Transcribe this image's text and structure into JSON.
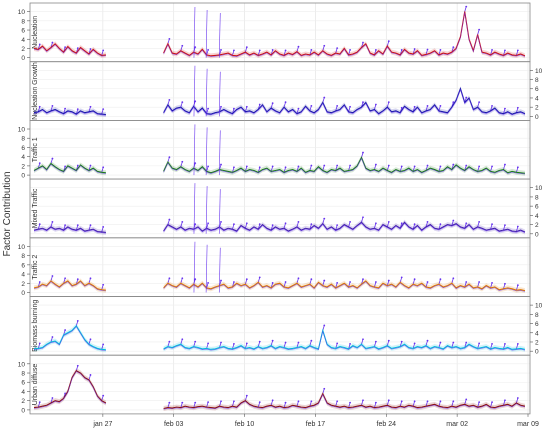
{
  "chart_data": {
    "type": "line",
    "ylabel": "Factor Contribution",
    "xlabel": "",
    "x_ticks": [
      "jan 27",
      "feb 03",
      "feb 10",
      "feb 17",
      "feb 24",
      "mar 02",
      "mar 09"
    ],
    "ylim": [
      0,
      11
    ],
    "y_ticks": [
      0,
      2,
      4,
      6,
      8,
      10
    ],
    "x_range": [
      "jan 20",
      "mar 09"
    ],
    "gap": [
      "jan 27",
      "feb 02"
    ],
    "grid": true,
    "legend": "none",
    "observed_color": "#6633ee",
    "panels": [
      {
        "name": "Nucleation",
        "axis": "left",
        "color": "#cc1111",
        "values": [
          2.0,
          1.8,
          2.5,
          1.5,
          2.2,
          3.0,
          2.0,
          1.2,
          2.4,
          1.5,
          1.0,
          2.2,
          1.5,
          0.8,
          1.8,
          1.0,
          0.5,
          0.6,
          1.0,
          3.0,
          1.0,
          0.8,
          1.5,
          1.0,
          0.5,
          1.2,
          0.8,
          1.8,
          0.6,
          0.4,
          0.5,
          0.6,
          0.8,
          1.0,
          0.5,
          0.4,
          0.8,
          1.2,
          0.6,
          1.0,
          0.5,
          0.8,
          1.2,
          0.6,
          1.5,
          0.8,
          0.5,
          1.0,
          0.7,
          1.3,
          0.5,
          0.8,
          0.6,
          1.2,
          0.6,
          1.5,
          0.8,
          0.5,
          1.0,
          0.8,
          2.0,
          0.6,
          0.8,
          1.2,
          2.2,
          3.0,
          1.0,
          0.6,
          1.5,
          0.8,
          2.5,
          1.2,
          1.0,
          0.6,
          1.8,
          1.0,
          0.8,
          1.5,
          0.5,
          0.7,
          1.0,
          1.5,
          0.6,
          1.0,
          0.8,
          1.2,
          2.0,
          4.5,
          10.0,
          4.0,
          1.5,
          5.0,
          1.2,
          1.0,
          0.6,
          1.2,
          0.8,
          0.5,
          1.0,
          0.6,
          0.5,
          0.8,
          0.4
        ]
      },
      {
        "name": "Nucleation Growth",
        "axis": "right",
        "color": "#1a1aa8",
        "values": [
          0.8,
          1.0,
          1.5,
          0.8,
          1.2,
          1.5,
          1.0,
          0.6,
          1.2,
          1.0,
          0.5,
          1.2,
          0.8,
          1.0,
          1.2,
          0.6,
          0.5,
          0.4,
          0.8,
          2.5,
          1.2,
          1.8,
          2.0,
          1.2,
          0.8,
          2.2,
          1.0,
          1.8,
          0.6,
          0.5,
          0.8,
          1.0,
          1.5,
          1.0,
          0.6,
          1.5,
          2.0,
          1.0,
          1.2,
          0.8,
          1.5,
          2.5,
          1.0,
          1.8,
          1.2,
          0.8,
          2.0,
          1.0,
          1.5,
          0.6,
          1.0,
          2.2,
          1.2,
          0.8,
          1.5,
          3.0,
          1.0,
          0.8,
          1.2,
          1.5,
          2.5,
          1.0,
          0.8,
          1.5,
          2.0,
          3.0,
          1.2,
          1.5,
          0.6,
          1.2,
          2.0,
          1.0,
          1.2,
          0.8,
          2.2,
          1.5,
          1.0,
          2.0,
          0.8,
          1.2,
          1.5,
          2.5,
          1.2,
          1.0,
          0.8,
          2.0,
          3.5,
          6.0,
          3.0,
          4.0,
          1.5,
          2.0,
          1.0,
          0.8,
          1.2,
          1.8,
          0.8,
          0.6,
          1.0,
          0.5,
          0.8,
          1.0,
          0.6
        ]
      },
      {
        "name": "Traffic 1",
        "axis": "left",
        "color": "#1a7a1a",
        "values": [
          1.0,
          1.5,
          2.0,
          1.2,
          2.5,
          1.8,
          1.2,
          0.8,
          2.0,
          1.5,
          1.0,
          2.2,
          1.5,
          1.0,
          1.5,
          0.8,
          0.6,
          0.5,
          0.8,
          2.8,
          1.5,
          1.2,
          1.8,
          1.2,
          0.8,
          1.5,
          1.0,
          1.8,
          0.8,
          0.5,
          0.8,
          1.2,
          1.0,
          0.8,
          0.6,
          1.0,
          1.5,
          0.8,
          1.2,
          1.0,
          0.6,
          1.2,
          1.5,
          0.8,
          1.0,
          1.2,
          0.6,
          1.0,
          1.2,
          0.8,
          1.5,
          0.6,
          1.0,
          0.8,
          1.8,
          1.0,
          0.6,
          1.2,
          1.0,
          1.5,
          0.8,
          1.0,
          1.2,
          2.0,
          3.8,
          1.5,
          1.0,
          1.2,
          0.8,
          1.5,
          1.0,
          0.6,
          1.2,
          0.8,
          1.0,
          1.5,
          0.8,
          1.2,
          0.6,
          1.0,
          1.5,
          1.2,
          0.8,
          1.0,
          1.8,
          1.2,
          2.2,
          1.5,
          1.0,
          1.8,
          1.2,
          0.8,
          1.0,
          1.5,
          0.8,
          0.6,
          1.0,
          1.2,
          0.5,
          0.8,
          0.6,
          0.5,
          0.4
        ]
      },
      {
        "name": "Mixed Traffic",
        "axis": "right",
        "color": "#4422aa",
        "values": [
          0.8,
          1.0,
          1.2,
          0.8,
          1.5,
          1.0,
          1.2,
          0.8,
          1.5,
          1.0,
          0.8,
          1.2,
          0.6,
          0.8,
          1.0,
          0.5,
          0.4,
          0.3,
          0.6,
          2.0,
          1.5,
          1.0,
          1.5,
          0.8,
          1.2,
          1.0,
          1.5,
          0.6,
          1.2,
          0.8,
          1.0,
          1.5,
          0.8,
          1.2,
          1.0,
          0.6,
          1.8,
          1.2,
          0.8,
          1.5,
          1.0,
          2.0,
          1.2,
          0.8,
          1.5,
          1.0,
          1.2,
          0.6,
          1.0,
          1.5,
          0.8,
          1.2,
          1.0,
          1.8,
          1.2,
          2.2,
          1.0,
          1.5,
          0.8,
          1.2,
          2.0,
          1.5,
          1.0,
          1.8,
          2.5,
          1.5,
          1.0,
          1.2,
          0.8,
          2.0,
          1.5,
          1.0,
          1.8,
          1.2,
          2.5,
          1.5,
          1.0,
          1.8,
          0.8,
          1.5,
          2.0,
          1.2,
          1.0,
          1.5,
          2.0,
          1.8,
          2.2,
          1.5,
          1.2,
          2.0,
          1.0,
          1.5,
          1.2,
          0.8,
          1.0,
          1.2,
          0.6,
          0.8,
          1.0,
          0.6,
          0.5,
          0.8,
          0.4
        ]
      },
      {
        "name": "Traffic 2",
        "axis": "left",
        "color": "#dd7700",
        "values": [
          1.0,
          1.2,
          1.8,
          1.5,
          2.5,
          1.8,
          1.2,
          2.0,
          2.5,
          1.5,
          1.8,
          2.5,
          1.5,
          2.0,
          1.5,
          0.8,
          0.6,
          0.5,
          1.0,
          2.0,
          1.5,
          1.2,
          2.0,
          1.5,
          1.0,
          1.8,
          1.2,
          2.0,
          1.0,
          0.8,
          1.2,
          1.5,
          1.8,
          1.0,
          1.2,
          2.0,
          1.5,
          1.8,
          1.0,
          1.5,
          2.2,
          1.2,
          1.5,
          1.0,
          1.8,
          2.0,
          1.2,
          1.0,
          1.5,
          2.0,
          1.2,
          1.5,
          1.8,
          1.0,
          2.2,
          1.5,
          1.2,
          1.8,
          1.0,
          1.5,
          2.0,
          1.2,
          1.5,
          1.0,
          1.8,
          2.5,
          1.5,
          1.2,
          1.0,
          2.0,
          1.5,
          1.8,
          1.2,
          2.2,
          1.5,
          1.0,
          1.8,
          1.5,
          2.0,
          1.2,
          1.0,
          1.5,
          1.8,
          1.2,
          1.5,
          2.0,
          1.0,
          1.5,
          1.2,
          1.8,
          1.0,
          1.2,
          0.8,
          1.5,
          1.0,
          1.2,
          0.6,
          0.8,
          1.0,
          0.8,
          0.5,
          0.6,
          0.4
        ]
      },
      {
        "name": "Biomass burning",
        "axis": "right",
        "color": "#00bbdd",
        "values": [
          0.5,
          0.6,
          0.8,
          1.5,
          2.0,
          2.2,
          1.5,
          3.5,
          4.0,
          4.5,
          5.5,
          4.0,
          2.5,
          1.5,
          1.0,
          0.6,
          0.4,
          0.3,
          0.5,
          1.0,
          0.8,
          1.2,
          1.5,
          0.8,
          0.6,
          1.0,
          0.8,
          0.5,
          0.6,
          0.4,
          0.5,
          0.8,
          1.0,
          0.6,
          0.5,
          0.8,
          1.2,
          0.6,
          0.8,
          0.5,
          1.0,
          0.6,
          0.8,
          1.2,
          0.6,
          1.0,
          0.8,
          0.5,
          0.6,
          0.8,
          1.0,
          0.6,
          1.2,
          0.8,
          0.5,
          4.5,
          1.5,
          0.8,
          0.6,
          1.0,
          0.8,
          0.5,
          1.2,
          0.8,
          1.5,
          0.6,
          0.8,
          1.0,
          0.5,
          0.8,
          1.2,
          0.6,
          0.8,
          1.0,
          1.5,
          0.8,
          0.6,
          1.0,
          0.8,
          1.2,
          0.6,
          1.0,
          0.8,
          0.5,
          1.2,
          0.8,
          1.0,
          0.6,
          0.8,
          1.5,
          1.0,
          0.6,
          0.8,
          1.0,
          0.5,
          0.8,
          0.6,
          0.5,
          0.8,
          0.4,
          0.5,
          0.6,
          0.4
        ]
      },
      {
        "name": "Urban diffuse",
        "axis": "left",
        "color": "#8a1111",
        "values": [
          0.5,
          0.6,
          0.8,
          1.0,
          1.5,
          2.0,
          1.8,
          2.5,
          4.0,
          7.0,
          8.5,
          8.0,
          7.0,
          6.5,
          5.0,
          3.0,
          2.0,
          1.5,
          0.3,
          0.5,
          0.4,
          0.6,
          0.5,
          0.8,
          0.6,
          0.5,
          0.7,
          0.8,
          0.6,
          0.5,
          0.4,
          0.8,
          0.6,
          0.5,
          0.8,
          0.6,
          1.5,
          2.0,
          1.2,
          0.8,
          0.6,
          0.5,
          0.8,
          1.0,
          0.6,
          0.8,
          0.5,
          0.6,
          1.0,
          0.8,
          0.6,
          0.5,
          0.8,
          1.0,
          1.5,
          3.5,
          1.5,
          1.0,
          0.8,
          0.6,
          0.8,
          0.5,
          0.6,
          0.8,
          1.0,
          0.6,
          0.8,
          0.5,
          0.6,
          0.8,
          1.0,
          0.6,
          0.5,
          0.8,
          0.6,
          1.0,
          0.8,
          0.5,
          0.6,
          0.8,
          1.0,
          1.2,
          0.8,
          0.6,
          0.5,
          0.8,
          0.6,
          1.0,
          1.2,
          0.8,
          1.0,
          0.6,
          0.8,
          1.2,
          0.6,
          0.5,
          0.8,
          1.0,
          1.2,
          0.8,
          1.5,
          1.0,
          0.8
        ]
      }
    ]
  }
}
